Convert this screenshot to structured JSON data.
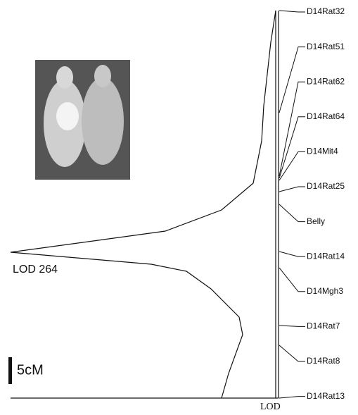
{
  "markers": [
    "D14Rat32",
    "D14Rat51",
    "D14Rat62",
    "D14Rat64",
    "D14Mit4",
    "D14Rat25",
    "Belly",
    "D14Rat14",
    "D14Mgh3",
    "D14Rat7",
    "D14Rat8",
    "D14Rat13"
  ],
  "peak_label": "LOD 264",
  "scale_bar": "5cM",
  "axis_label": "LOD"
}
